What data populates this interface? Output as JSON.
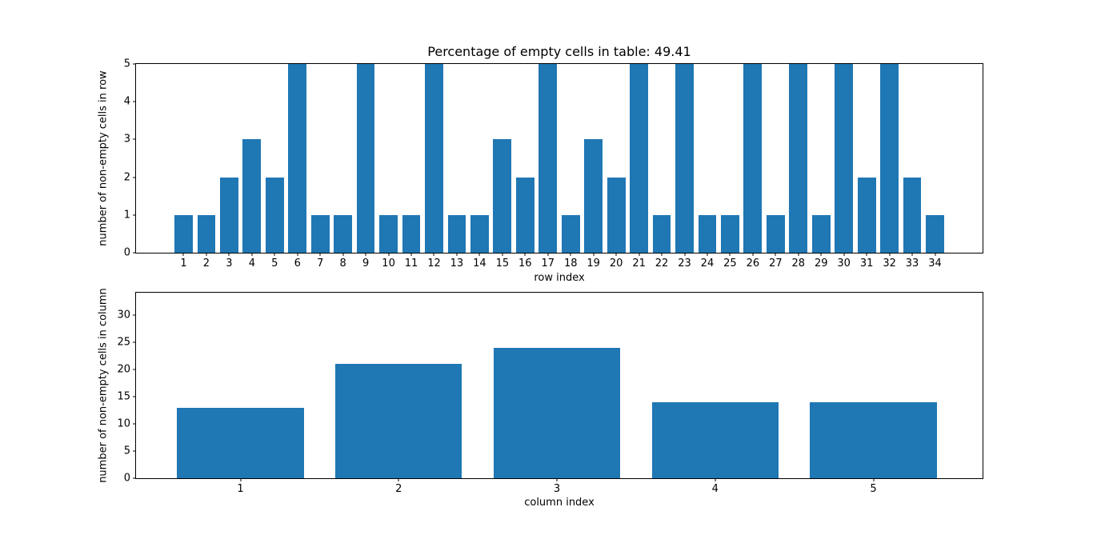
{
  "figure": {
    "background": "#ffffff",
    "bar_color": "#1f77b4",
    "spine_color": "#000000",
    "text_color": "#000000"
  },
  "chart_data": [
    {
      "type": "bar",
      "title": "Percentage of empty cells in table: 49.41",
      "xlabel": "row index",
      "ylabel": "number of non-empty cells in row",
      "categories": [
        1,
        2,
        3,
        4,
        5,
        6,
        7,
        8,
        9,
        10,
        11,
        12,
        13,
        14,
        15,
        16,
        17,
        18,
        19,
        20,
        21,
        22,
        23,
        24,
        25,
        26,
        27,
        28,
        29,
        30,
        31,
        32,
        33,
        34
      ],
      "values": [
        1,
        1,
        2,
        3,
        2,
        5,
        1,
        1,
        5,
        1,
        1,
        5,
        1,
        1,
        3,
        2,
        5,
        1,
        3,
        2,
        5,
        1,
        5,
        1,
        1,
        5,
        1,
        5,
        1,
        5,
        2,
        5,
        2,
        1
      ],
      "xlim": [
        -1.09,
        36.09
      ],
      "ylim": [
        0,
        5
      ],
      "yticks": [
        0,
        1,
        2,
        3,
        4,
        5
      ],
      "bar_width_units": 0.8,
      "bar_color": "#1f77b4",
      "grid": false,
      "legend": null
    },
    {
      "type": "bar",
      "title": "",
      "xlabel": "column index",
      "ylabel": "number of non-empty cells in column",
      "categories": [
        1,
        2,
        3,
        4,
        5
      ],
      "values": [
        13,
        21,
        24,
        14,
        14
      ],
      "xlim": [
        0.34,
        5.69
      ],
      "ylim": [
        0,
        34.1
      ],
      "yticks": [
        0,
        5,
        10,
        15,
        20,
        25,
        30
      ],
      "bar_width_units": 0.8,
      "bar_color": "#1f77b4",
      "grid": false,
      "legend": null
    }
  ]
}
